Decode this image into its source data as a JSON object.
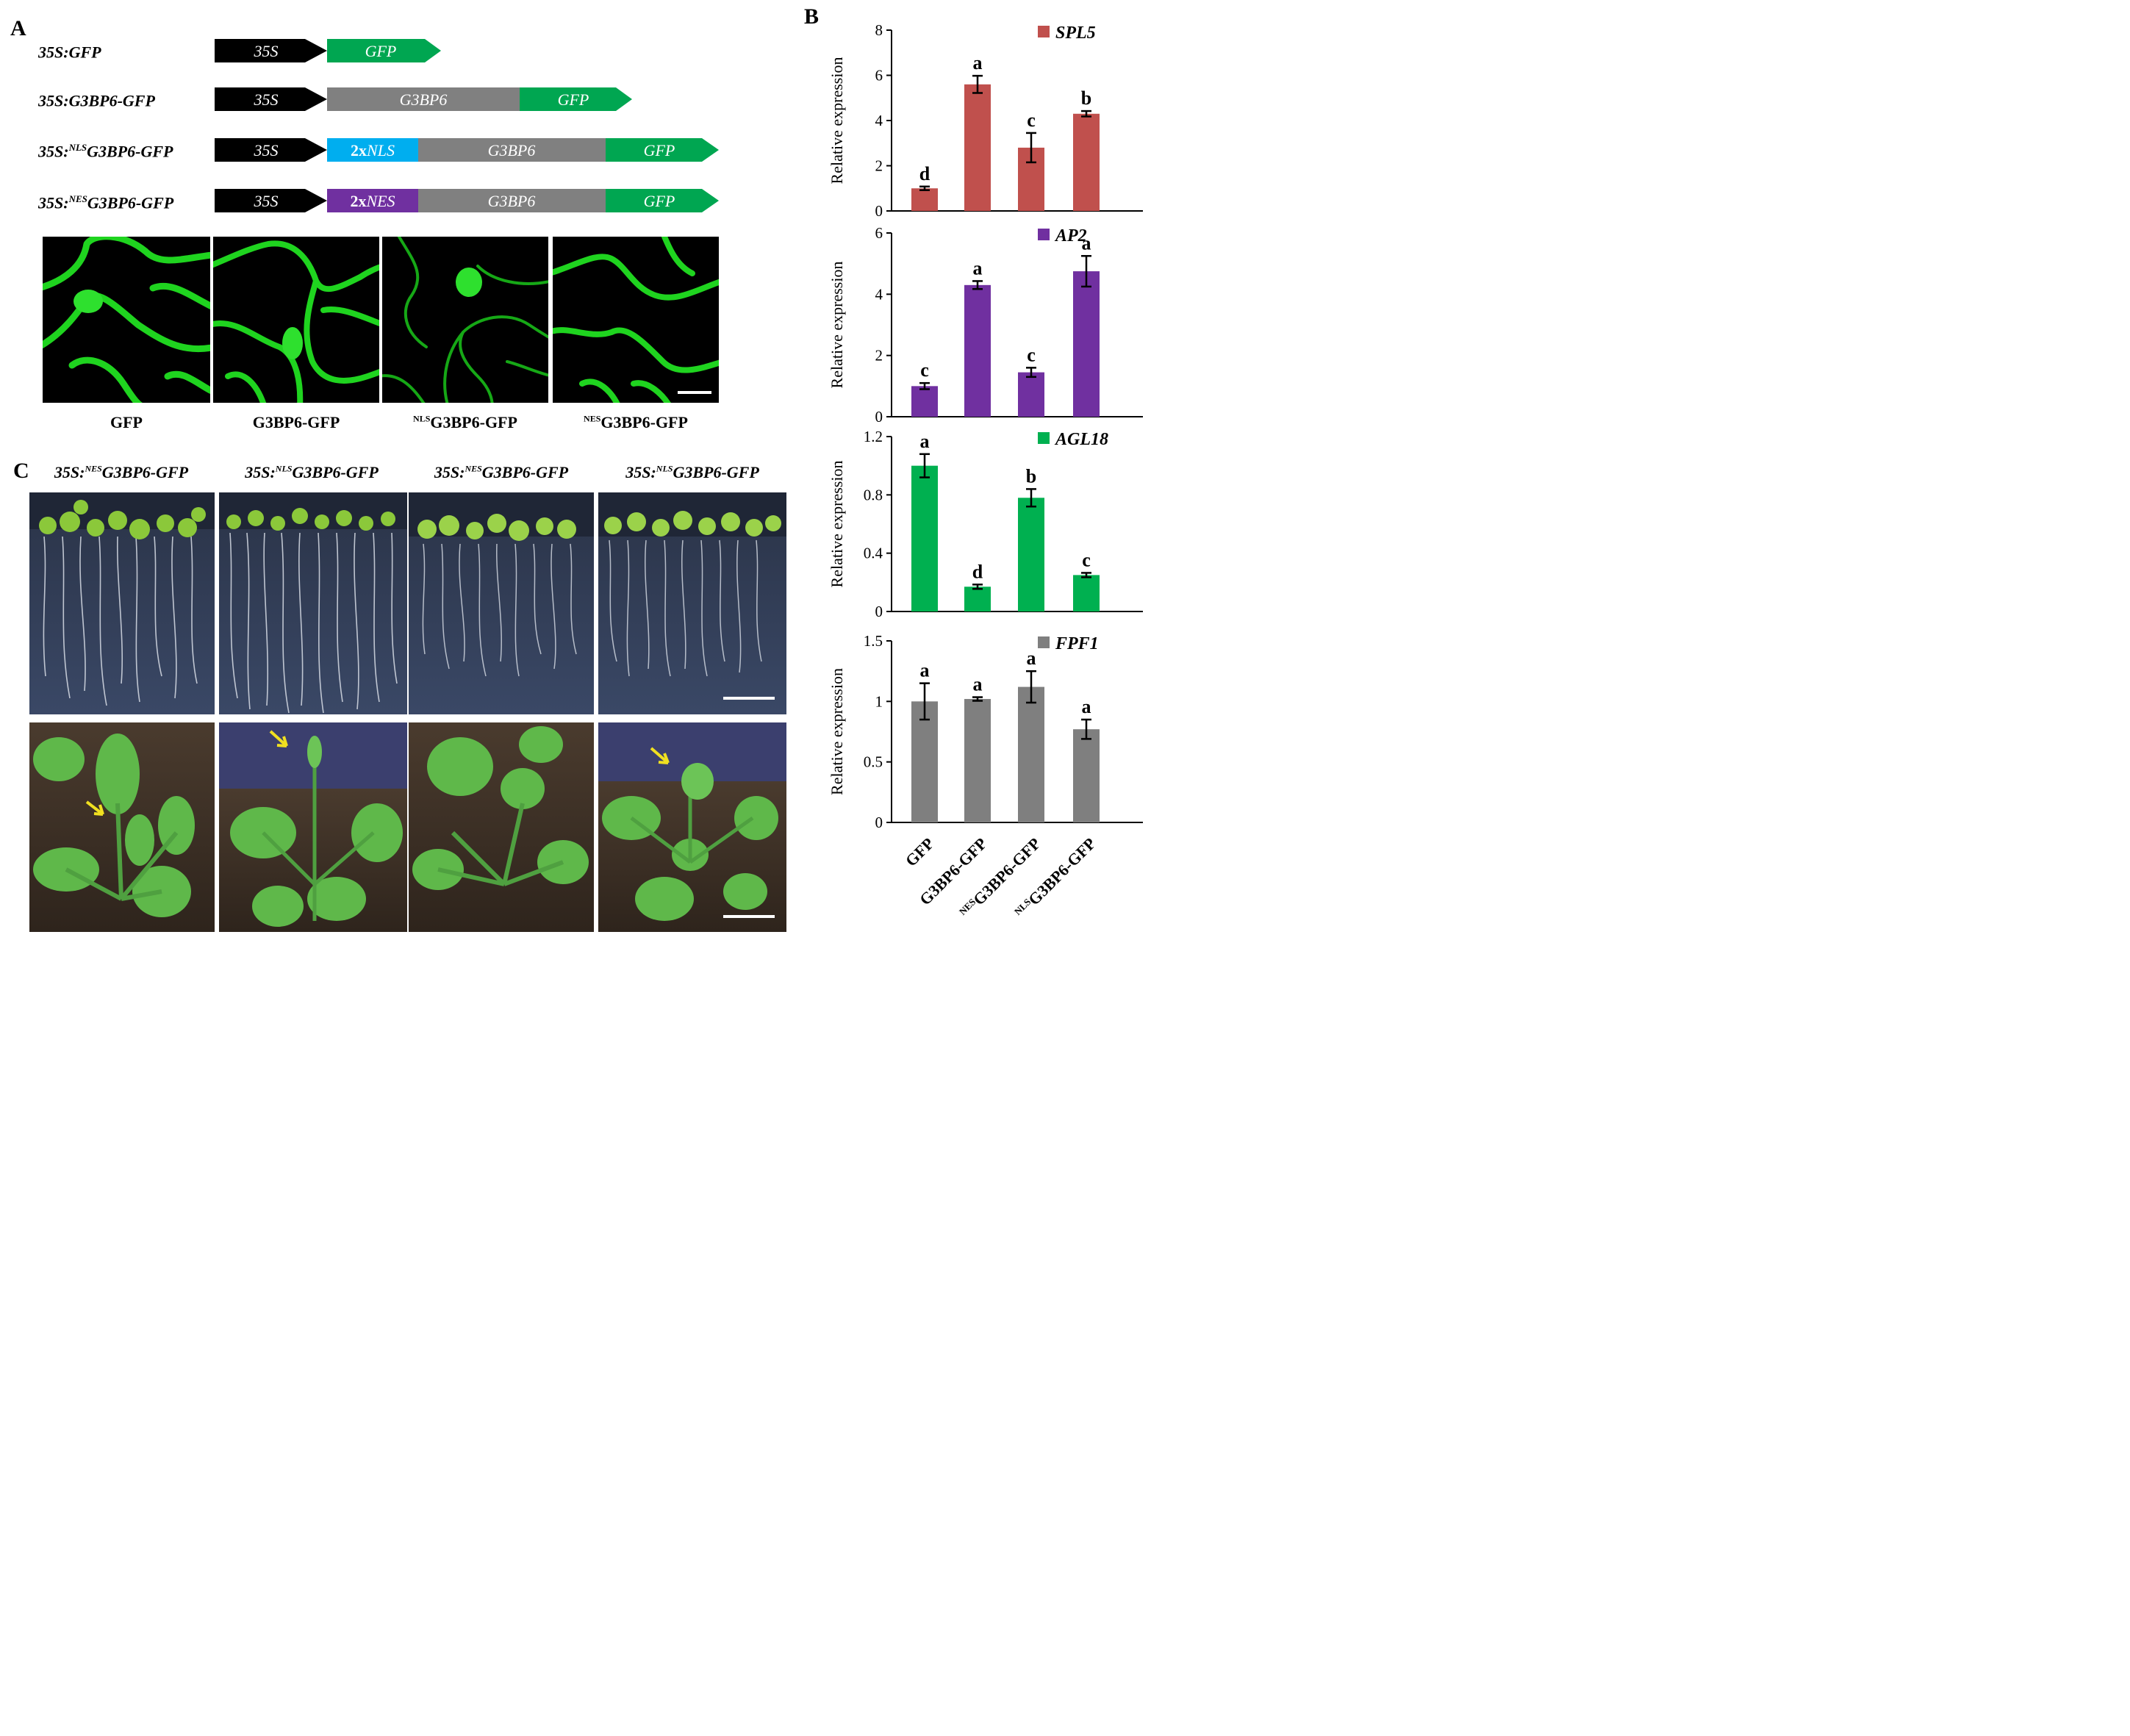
{
  "panels": {
    "A": "A",
    "B": "B",
    "C": "C"
  },
  "constructs": [
    {
      "name_prefix": "35S:",
      "name_sup": "",
      "name_main": "GFP",
      "segments": [
        {
          "label": "35S",
          "color": "#000000"
        },
        {
          "label": "GFP",
          "color": "#00a651"
        }
      ]
    },
    {
      "name_prefix": "35S:",
      "name_sup": "",
      "name_main": "G3BP6-GFP",
      "segments": [
        {
          "label": "35S",
          "color": "#000000"
        },
        {
          "label": "G3BP6",
          "color": "#808080"
        },
        {
          "label": "GFP",
          "color": "#00a651"
        }
      ]
    },
    {
      "name_prefix": "35S:",
      "name_sup": "NLS",
      "name_main": "G3BP6-GFP",
      "segments": [
        {
          "label": "35S",
          "color": "#000000"
        },
        {
          "label": "2xNLS",
          "label_prefix": "2x",
          "label_main": "NLS",
          "color": "#00aeef"
        },
        {
          "label": "G3BP6",
          "color": "#808080"
        },
        {
          "label": "GFP",
          "color": "#00a651"
        }
      ]
    },
    {
      "name_prefix": "35S:",
      "name_sup": "NES",
      "name_main": "G3BP6-GFP",
      "segments": [
        {
          "label": "35S",
          "color": "#000000"
        },
        {
          "label": "2xNES",
          "label_prefix": "2x",
          "label_main": "NES",
          "color": "#7030a0"
        },
        {
          "label": "G3BP6",
          "color": "#808080"
        },
        {
          "label": "GFP",
          "color": "#00a651"
        }
      ]
    }
  ],
  "micrographs": [
    {
      "label_sup": "",
      "label_main": "GFP"
    },
    {
      "label_sup": "",
      "label_main": "G3BP6-GFP"
    },
    {
      "label_sup": "NLS",
      "label_main": "G3BP6-GFP"
    },
    {
      "label_sup": "NES",
      "label_main": "G3BP6-GFP"
    }
  ],
  "seedlings": [
    {
      "prefix": "35S:",
      "sup": "NES",
      "main": "G3BP6-GFP"
    },
    {
      "prefix": "35S:",
      "sup": "NLS",
      "main": "G3BP6-GFP"
    },
    {
      "prefix": "35S:",
      "sup": "NES",
      "main": "G3BP6-GFP"
    },
    {
      "prefix": "35S:",
      "sup": "NLS",
      "main": "G3BP6-GFP"
    }
  ],
  "chart_data": [
    {
      "type": "bar",
      "legend": "SPL5",
      "color": "#c0504d",
      "ylabel": "Relative expression",
      "ylim": [
        0,
        8
      ],
      "yticks": [
        "0",
        "2",
        "4",
        "6",
        "8"
      ],
      "ytick_values": [
        0,
        2,
        4,
        6,
        8
      ],
      "values": [
        1.0,
        5.6,
        2.8,
        4.3
      ],
      "errors": [
        0.08,
        0.38,
        0.65,
        0.12
      ],
      "letters": [
        "d",
        "a",
        "c",
        "b"
      ]
    },
    {
      "type": "bar",
      "legend": "AP2",
      "color": "#7030a0",
      "ylabel": "Relative expression",
      "ylim": [
        0,
        6
      ],
      "yticks": [
        "0",
        "2",
        "4",
        "6"
      ],
      "ytick_values": [
        0,
        2,
        4,
        6
      ],
      "values": [
        1.0,
        4.3,
        1.45,
        4.75
      ],
      "errors": [
        0.1,
        0.13,
        0.15,
        0.5
      ],
      "letters": [
        "c",
        "a",
        "c",
        "a"
      ]
    },
    {
      "type": "bar",
      "legend": "AGL18",
      "color": "#00b050",
      "ylabel": "Relative expression",
      "ylim": [
        0,
        1.2
      ],
      "yticks": [
        "0",
        "0.4",
        "0.8",
        "1.2"
      ],
      "ytick_values": [
        0,
        0.4,
        0.8,
        1.2
      ],
      "values": [
        1.0,
        0.17,
        0.78,
        0.25
      ],
      "errors": [
        0.08,
        0.015,
        0.06,
        0.015
      ],
      "letters": [
        "a",
        "d",
        "b",
        "c"
      ]
    },
    {
      "type": "bar",
      "legend": "FPF1",
      "color": "#7f7f7f",
      "ylabel": "Relative expression",
      "ylim": [
        0,
        1.5
      ],
      "yticks": [
        "0",
        "0.5",
        "1",
        "1.5"
      ],
      "ytick_values": [
        0,
        0.5,
        1,
        1.5
      ],
      "values": [
        1.0,
        1.02,
        1.12,
        0.77
      ],
      "errors": [
        0.15,
        0.015,
        0.13,
        0.08
      ],
      "letters": [
        "a",
        "a",
        "a",
        "a"
      ]
    }
  ],
  "categories": [
    {
      "sup": "",
      "main": "GFP"
    },
    {
      "sup": "",
      "main": "G3BP6-GFP"
    },
    {
      "sup": "NES",
      "main": "G3BP6-GFP"
    },
    {
      "sup": "NLS",
      "main": "G3BP6-GFP"
    }
  ]
}
